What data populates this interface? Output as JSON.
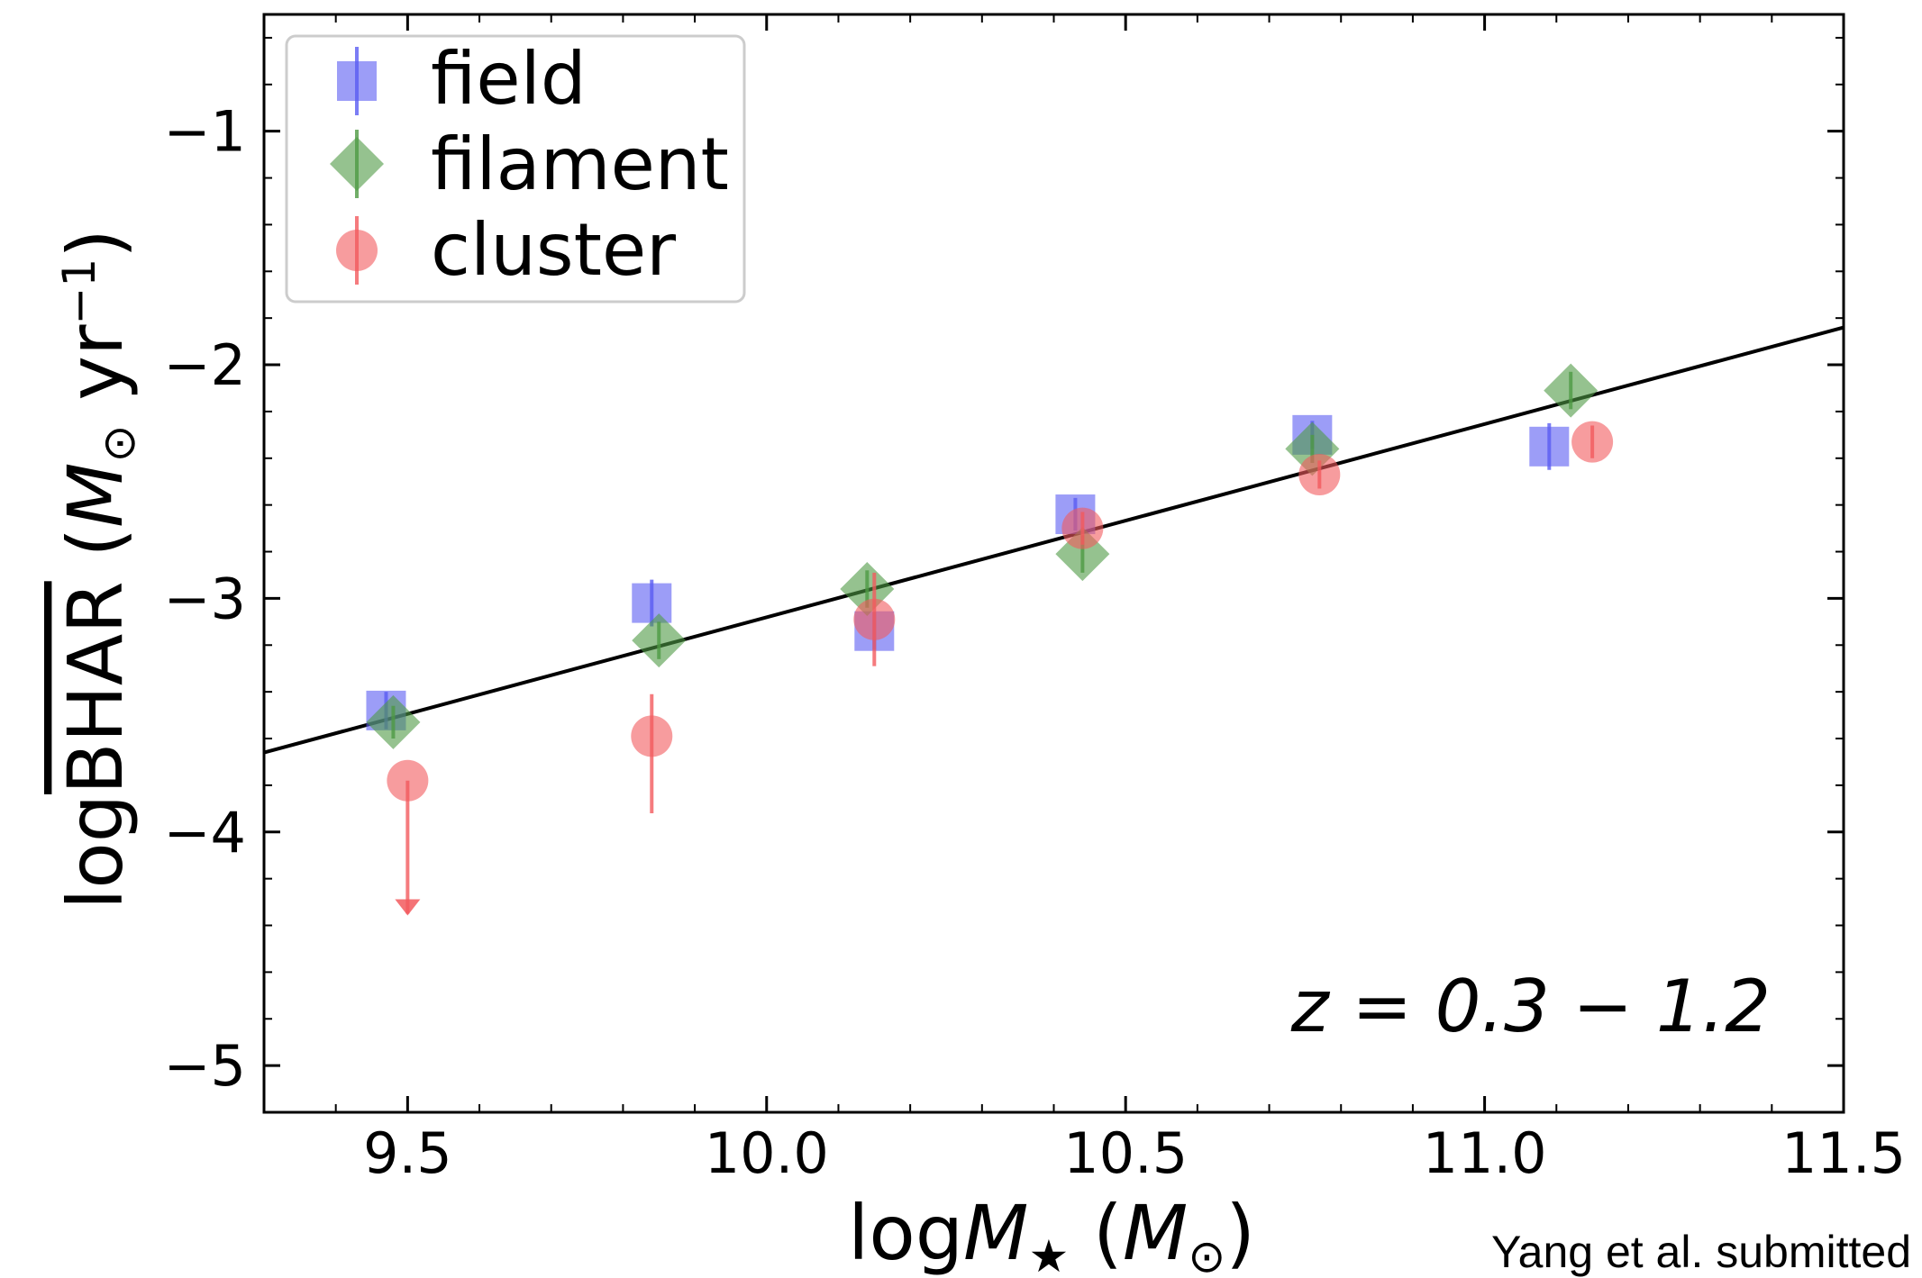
{
  "chart_data": {
    "type": "scatter",
    "xlabel": {
      "prefix": "log",
      "var": "M",
      "sub": "★",
      "unit_open": " (",
      "unit_var": "M",
      "unit_sub": "⊙",
      "unit_close": ")"
    },
    "ylabel": {
      "prefix": "log",
      "var": "BHAR",
      "unit_open": " (",
      "unit_var": "M",
      "unit_sub": "⊙",
      "unit_mid": " yr",
      "unit_sup": "−1",
      "unit_close": ")"
    },
    "xlim": [
      9.3,
      11.5
    ],
    "ylim": [
      -5.2,
      -0.5
    ],
    "xticks": [
      {
        "value": 9.5,
        "label": "9.5"
      },
      {
        "value": 10.0,
        "label": "10.0"
      },
      {
        "value": 10.5,
        "label": "10.5"
      },
      {
        "value": 11.0,
        "label": "11.0"
      },
      {
        "value": 11.5,
        "label": "11.5"
      }
    ],
    "yticks": [
      {
        "value": -1,
        "label": "−1"
      },
      {
        "value": -2,
        "label": "−2"
      },
      {
        "value": -3,
        "label": "−3"
      },
      {
        "value": -4,
        "label": "−4"
      },
      {
        "value": -5,
        "label": "−5"
      }
    ],
    "x_minor_step": 0.1,
    "y_minor_step": 0.2,
    "legend_position": "top-left",
    "series": [
      {
        "name": "field",
        "marker": "square",
        "color": "#5a5cf2",
        "points": [
          {
            "x": 9.47,
            "y": -3.48,
            "err": 0.08
          },
          {
            "x": 9.84,
            "y": -3.02,
            "err": 0.1
          },
          {
            "x": 10.15,
            "y": -3.14,
            "err": 0.08
          },
          {
            "x": 10.43,
            "y": -2.64,
            "err": 0.07
          },
          {
            "x": 10.76,
            "y": -2.3,
            "err": 0.06
          },
          {
            "x": 11.09,
            "y": -2.35,
            "err": 0.1
          }
        ]
      },
      {
        "name": "filament",
        "marker": "diamond",
        "color": "#4f9a44",
        "points": [
          {
            "x": 9.48,
            "y": -3.53,
            "err": 0.07
          },
          {
            "x": 9.85,
            "y": -3.18,
            "err": 0.08
          },
          {
            "x": 10.14,
            "y": -2.96,
            "err": 0.08
          },
          {
            "x": 10.44,
            "y": -2.81,
            "err": 0.08
          },
          {
            "x": 10.76,
            "y": -2.36,
            "err": 0.06
          },
          {
            "x": 11.12,
            "y": -2.11,
            "err": 0.08
          }
        ]
      },
      {
        "name": "cluster",
        "marker": "circle",
        "color": "#f25a5e",
        "points": [
          {
            "x": 9.5,
            "y": -3.78,
            "upper_limit": true,
            "limit_to": -4.35
          },
          {
            "x": 9.84,
            "y": -3.59,
            "err_low": 0.33,
            "err_high": 0.18
          },
          {
            "x": 10.15,
            "y": -3.09,
            "err": 0.2
          },
          {
            "x": 10.44,
            "y": -2.7,
            "err": 0.07
          },
          {
            "x": 10.77,
            "y": -2.47,
            "err": 0.06
          },
          {
            "x": 11.15,
            "y": -2.33,
            "err": 0.07
          }
        ]
      }
    ],
    "fit_line": {
      "x": [
        9.3,
        11.5
      ],
      "y": [
        -3.66,
        -1.84
      ],
      "color": "#000000"
    },
    "annotations": [
      {
        "text": "z = 0.3 − 1.2"
      }
    ]
  },
  "credit": "Yang et al. submitted"
}
